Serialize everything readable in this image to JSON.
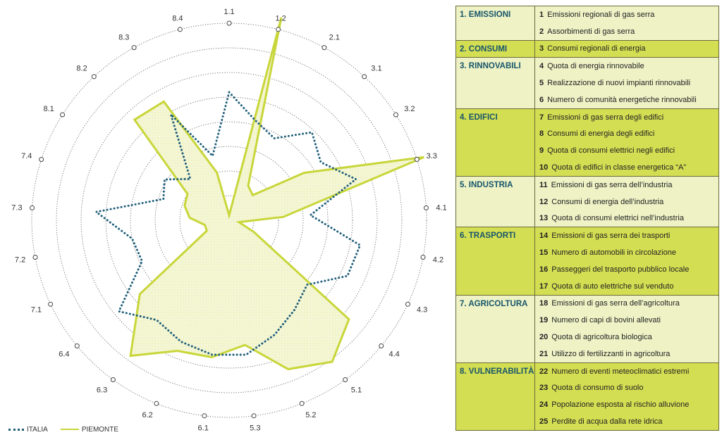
{
  "colors": {
    "italia": "#1f5f7a",
    "piemonte": "#c8d63a",
    "piemonte_fill": "#f2f4cc",
    "group_title": "#17556b",
    "light_row": "#eef2c5",
    "dark_row": "#d4de52"
  },
  "legend": {
    "italia": "ITALIA",
    "piemonte": "PIEMONTE"
  },
  "chart_data": {
    "type": "radar",
    "axes": [
      "1.1",
      "1.2",
      "2.1",
      "3.1",
      "3.2",
      "3.3",
      "4.1",
      "4.2",
      "4.3",
      "4.4",
      "5.1",
      "5.2",
      "5.3",
      "6.1",
      "6.2",
      "6.3",
      "6.4",
      "7.1",
      "7.2",
      "7.3",
      "7.4",
      "8.1",
      "8.2",
      "8.3",
      "8.4"
    ],
    "rings": 8,
    "range": [
      0,
      8
    ],
    "series": [
      {
        "name": "ITALIA",
        "style": "dotted",
        "values": [
          5.2,
          4.2,
          3.8,
          4.9,
          4.4,
          5.4,
          3.3,
          5.4,
          5.3,
          4.1,
          4.5,
          5.0,
          5.5,
          5.5,
          5.3,
          5.0,
          5.8,
          3.9,
          4.0,
          5.4,
          2.8,
          3.1,
          2.3,
          4.9,
          2.7
        ]
      },
      {
        "name": "PIEMONTE",
        "style": "solid",
        "values": [
          0.2,
          8.5,
          1.6,
          1.4,
          3.6,
          8.3,
          2.2,
          0.4,
          1.1,
          6.3,
          7.1,
          6.5,
          5.1,
          5.6,
          5.7,
          6.8,
          4.7,
          1.0,
          1.0,
          1.6,
          1.9,
          2.0,
          5.6,
          5.5,
          2.0
        ]
      }
    ]
  },
  "table": [
    {
      "title": "1. EMISSIONI",
      "shade": "light",
      "items": [
        {
          "num": "1",
          "text": "Emissioni regionali di gas serra"
        },
        {
          "num": "2",
          "text": "Assorbimenti di gas serra"
        }
      ]
    },
    {
      "title": "2. CONSUMI",
      "shade": "dark",
      "items": [
        {
          "num": "3",
          "text": "Consumi regionali di energia"
        }
      ]
    },
    {
      "title": "3. RINNOVABILI",
      "shade": "light",
      "items": [
        {
          "num": "4",
          "text": "Quota di energia rinnovabile"
        },
        {
          "num": "5",
          "text": "Realizzazione di nuovi impianti rinnovabili"
        },
        {
          "num": "6",
          "text": "Numero di comunità energetiche rinnovabili"
        }
      ]
    },
    {
      "title": "4. EDIFICI",
      "shade": "dark",
      "items": [
        {
          "num": "7",
          "text": "Emissioni di gas serra degli edifici"
        },
        {
          "num": "8",
          "text": "Consumi di energia degli edifici"
        },
        {
          "num": "9",
          "text": "Quota di consumi elettrici negli edifici"
        },
        {
          "num": "10",
          "text": "Quota di edifici in classe energetica “A”"
        }
      ]
    },
    {
      "title": "5. INDUSTRIA",
      "shade": "light",
      "items": [
        {
          "num": "11",
          "text": "Emissioni di gas serra dell’industria"
        },
        {
          "num": "12",
          "text": "Consumi di energia dell’industria"
        },
        {
          "num": "13",
          "text": "Quota di consumi elettrici nell’industria"
        }
      ]
    },
    {
      "title": "6. TRASPORTI",
      "shade": "dark",
      "items": [
        {
          "num": "14",
          "text": "Emissioni di gas serra dei trasporti"
        },
        {
          "num": "15",
          "text": "Numero di automobili in circolazione"
        },
        {
          "num": "16",
          "text": "Passeggeri del trasporto pubblico locale"
        },
        {
          "num": "17",
          "text": "Quota di auto elettriche sul venduto"
        }
      ]
    },
    {
      "title": "7. AGRICOLTURA",
      "shade": "light",
      "items": [
        {
          "num": "18",
          "text": "Emissioni di gas serra dell’agricoltura"
        },
        {
          "num": "19",
          "text": "Numero di capi di bovini allevati"
        },
        {
          "num": "20",
          "text": "Quota di agricoltura biologica"
        },
        {
          "num": "21",
          "text": "Utilizzo di fertilizzanti in agricoltura"
        }
      ]
    },
    {
      "title": "8. VULNERABILITÀ",
      "shade": "dark",
      "items": [
        {
          "num": "22",
          "text": "Numero di eventi meteoclimatici estremi"
        },
        {
          "num": "23",
          "text": "Quota di consumo di suolo"
        },
        {
          "num": "24",
          "text": "Popolazione esposta al rischio alluvione"
        },
        {
          "num": "25",
          "text": "Perdite di acqua dalla rete idrica"
        }
      ]
    }
  ]
}
